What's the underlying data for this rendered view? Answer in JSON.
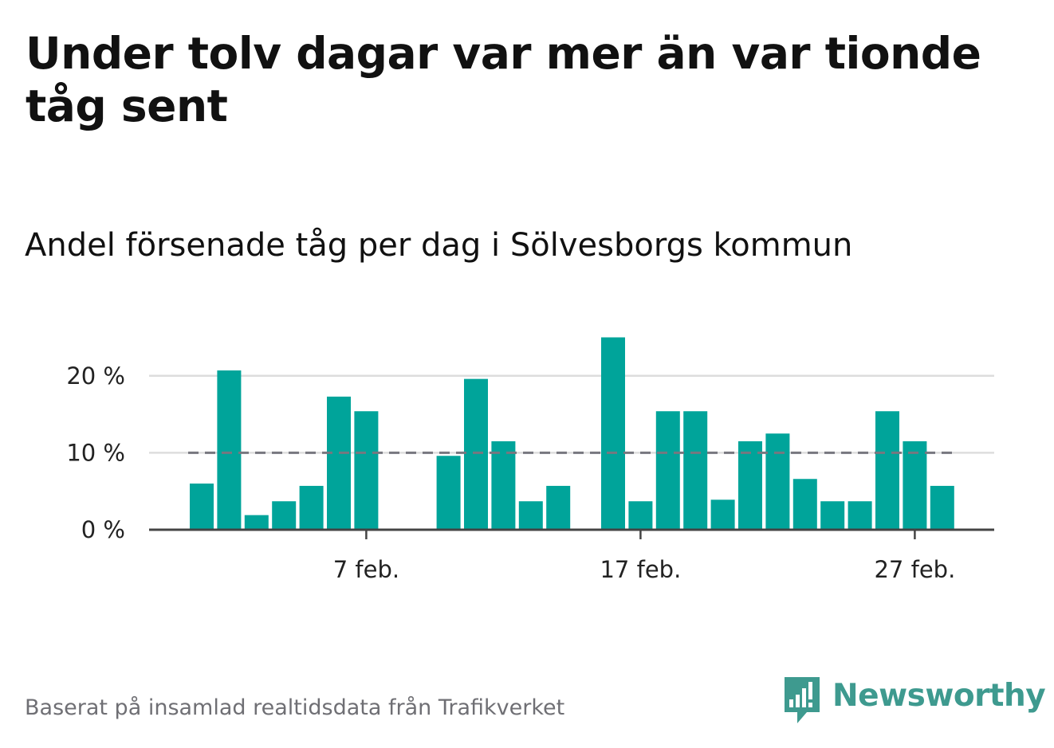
{
  "header": {
    "title": "Under tolv dagar var mer än var tionde tåg sent",
    "subtitle": "Andel försenade tåg per dag i Sölvesborgs kommun"
  },
  "footer": {
    "source": "Baserat på insamlad realtidsdata från Trafikverket",
    "brand": "Newsworthy",
    "brand_icon": "newsworthy-logo-icon"
  },
  "colors": {
    "bar": "#00a49a",
    "reference_line": "#77777f",
    "gridline": "#dddddd",
    "axis": "#444444",
    "brand": "#3e9a8f"
  },
  "chart_data": {
    "type": "bar",
    "title": "Andel försenade tåg per dag i Sölvesborgs kommun",
    "xlabel": "",
    "ylabel": "",
    "x_unit": "day of February",
    "x": [
      1,
      2,
      3,
      4,
      5,
      6,
      7,
      8,
      9,
      10,
      11,
      12,
      13,
      14,
      15,
      16,
      17,
      18,
      19,
      20,
      21,
      22,
      23,
      24,
      25,
      26,
      27,
      28
    ],
    "values": [
      6,
      20.7,
      1.9,
      3.7,
      5.7,
      17.3,
      15.4,
      0,
      0,
      9.6,
      19.6,
      11.5,
      3.7,
      5.7,
      0,
      25,
      3.7,
      15.4,
      15.4,
      3.9,
      11.5,
      12.5,
      6.6,
      3.7,
      3.7,
      15.4,
      11.5,
      5.7
    ],
    "ylim": [
      0,
      25
    ],
    "y_ticks": [
      0,
      10,
      20
    ],
    "y_tick_labels": [
      "0 %",
      "10 %",
      "20 %"
    ],
    "x_ticks": [
      7,
      17,
      27
    ],
    "x_tick_labels": [
      "7 feb.",
      "17 feb.",
      "27 feb."
    ],
    "reference_line": {
      "value": 10,
      "style": "dashed"
    },
    "grid": true,
    "legend": "none"
  }
}
